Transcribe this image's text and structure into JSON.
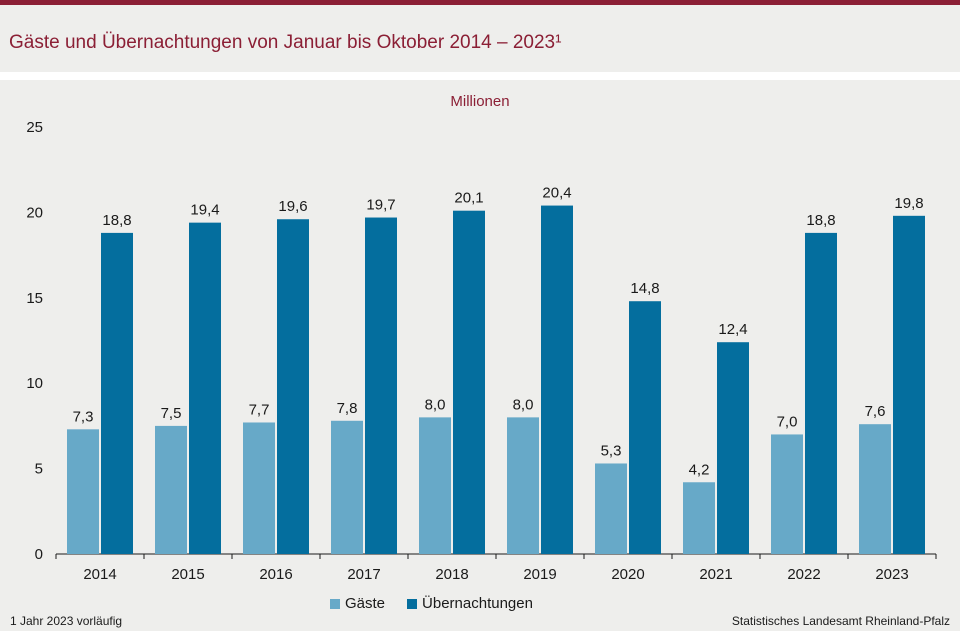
{
  "title": "Gäste und Übernachtungen von Januar bis Oktober 2014 – 2023¹",
  "footnote": "1 Jahr  2023  vorläufig",
  "source": "Statistisches Landesamt Rheinland-Pfalz",
  "colors": {
    "accent": "#8b1f35",
    "gaeste": "#67a9c8",
    "uebernachtungen": "#046e9e",
    "background": "#eeeeec"
  },
  "chart_data": {
    "type": "bar",
    "unit_label": "Millionen",
    "categories": [
      "2014",
      "2015",
      "2016",
      "2017",
      "2018",
      "2019",
      "2020",
      "2021",
      "2022",
      "2023"
    ],
    "series": [
      {
        "name": "Gäste",
        "values": [
          7.3,
          7.5,
          7.7,
          7.8,
          8.0,
          8.0,
          5.3,
          4.2,
          7.0,
          7.6
        ],
        "labels": [
          "7,3",
          "7,5",
          "7,7",
          "7,8",
          "8,0",
          "8,0",
          "5,3",
          "4,2",
          "7,0",
          "7,6"
        ]
      },
      {
        "name": "Übernachtungen",
        "values": [
          18.8,
          19.4,
          19.6,
          19.7,
          20.1,
          20.4,
          14.8,
          12.4,
          18.8,
          19.8
        ],
        "labels": [
          "18,8",
          "19,4",
          "19,6",
          "19,7",
          "20,1",
          "20,4",
          "14,8",
          "12,4",
          "18,8",
          "19,8"
        ]
      }
    ],
    "ylim": [
      0,
      25
    ],
    "yticks": [
      0,
      5,
      10,
      15,
      20,
      25
    ],
    "grid": false,
    "legend_position": "bottom"
  }
}
